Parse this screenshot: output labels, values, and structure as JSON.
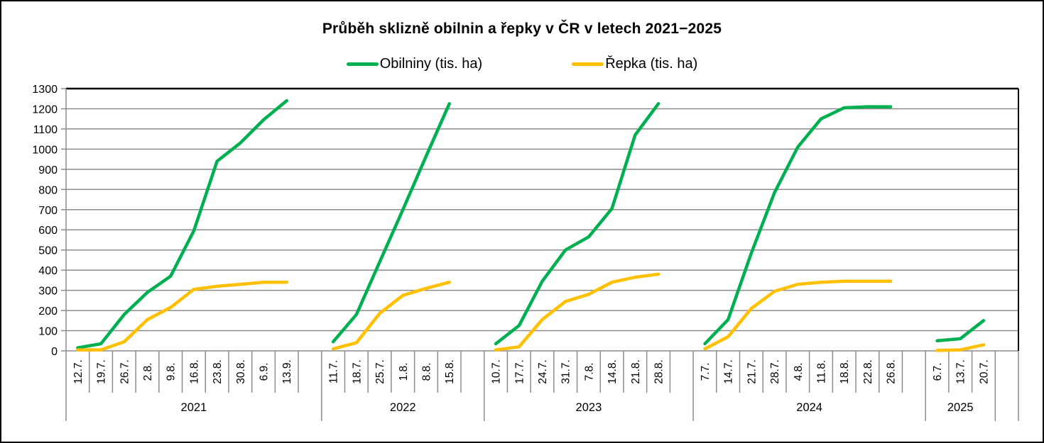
{
  "title": "Průběh sklizně obilnin a řepky v ČR v letech 2021−2025",
  "legend": {
    "items": [
      {
        "label": "Obilniny (tis. ha)",
        "color": "#00B050"
      },
      {
        "label": "Řepka (tis. ha)",
        "color": "#FFC000"
      }
    ]
  },
  "chart_data": {
    "type": "line",
    "title": "Průběh sklizně obilnin a řepky v ČR v letech 2021−2025",
    "ylim": [
      0,
      1300
    ],
    "ytick_interval": 100,
    "yticks": [
      0,
      100,
      200,
      300,
      400,
      500,
      600,
      700,
      800,
      900,
      1000,
      1100,
      1200,
      1300
    ],
    "grid": true,
    "legend_position": "top",
    "colors": {
      "grid": "#8C8C8C",
      "axis": "#8C8C8C",
      "frame_top": "#000000",
      "frame_right": "#000000",
      "text": "#000000"
    },
    "series_meta": [
      {
        "key": "obilniny",
        "name": "Obilniny (tis. ha)",
        "color": "#00B050"
      },
      {
        "key": "repka",
        "name": "Řepka (tis. ha)",
        "color": "#FFC000"
      }
    ],
    "groups": [
      {
        "year": "2021",
        "x": [
          "12.7.",
          "19.7.",
          "26.7.",
          "2.8.",
          "9.8.",
          "16.8.",
          "23.8.",
          "30.8.",
          "6.9.",
          "13.9."
        ],
        "obilniny": [
          15,
          35,
          180,
          290,
          370,
          595,
          940,
          1030,
          1145,
          1240
        ],
        "repka": [
          5,
          5,
          45,
          155,
          215,
          305,
          320,
          330,
          340,
          340
        ],
        "pad_cells": 1
      },
      {
        "year": "2022",
        "x": [
          "11.7.",
          "18.7.",
          "25.7.",
          "1.8.",
          "8.8.",
          "15.8."
        ],
        "obilniny": [
          45,
          180,
          440,
          700,
          965,
          1225
        ],
        "repka": [
          10,
          40,
          185,
          275,
          310,
          340
        ],
        "pad_cells": 1
      },
      {
        "year": "2023",
        "x": [
          "10.7.",
          "17.7.",
          "24.7.",
          "31.7.",
          "7.8.",
          "14.8.",
          "21.8.",
          "28.8."
        ],
        "obilniny": [
          35,
          125,
          345,
          500,
          565,
          705,
          1070,
          1225
        ],
        "repka": [
          5,
          20,
          155,
          245,
          280,
          340,
          365,
          380
        ],
        "pad_cells": 1
      },
      {
        "year": "2024",
        "x": [
          "7.7.",
          "14.7.",
          "21.7.",
          "28.7.",
          "4.8.",
          "11.8.",
          "18.8.",
          "22.8.",
          "26.8."
        ],
        "obilniny": [
          35,
          155,
          485,
          785,
          1010,
          1150,
          1205,
          1210,
          1210
        ],
        "repka": [
          10,
          70,
          210,
          295,
          330,
          340,
          345,
          345,
          345
        ],
        "pad_cells": 1
      },
      {
        "year": "2025",
        "x": [
          "6.7.",
          "13.7.",
          "20.7."
        ],
        "obilniny": [
          50,
          60,
          150
        ],
        "repka": [
          2,
          5,
          30
        ],
        "pad_cells": 0
      }
    ],
    "trailing_cells": 1
  }
}
